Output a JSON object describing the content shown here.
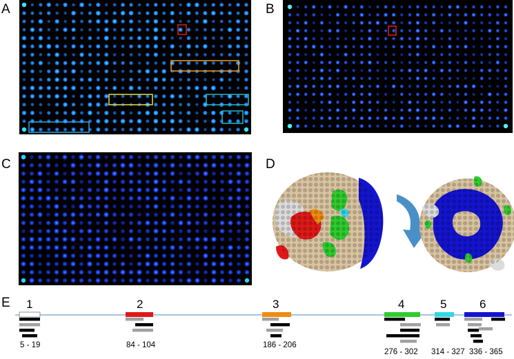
{
  "panels": {
    "A": {
      "label": "A"
    },
    "B": {
      "label": "B"
    },
    "C": {
      "label": "C"
    },
    "D": {
      "label": "D"
    },
    "E": {
      "label": "E"
    }
  },
  "arrays": {
    "A": {
      "rows": 16,
      "cols": 28,
      "dot_color": "#1f7fff",
      "glow_color": "#36e3ff"
    },
    "B": {
      "rows": 16,
      "cols": 28,
      "dot_color": "#1a3ed8",
      "glow_color": "#4ff0ff"
    },
    "C": {
      "rows": 16,
      "cols": 28,
      "dot_color": "#1d2fe8",
      "glow_color": "#2bd6ff"
    }
  },
  "highlight_colors": {
    "red": "#e0201c",
    "orange": "#f0a020",
    "yellow": "#e8e040",
    "blue": "#2fa8e0",
    "teal": "#29b7c6"
  },
  "structure_colors": {
    "tan": "#d9c3a0",
    "white": "#dcdcdc",
    "red": "#e01818",
    "orange": "#f08c10",
    "green": "#2ecc2e",
    "cyan": "#2fd8e8",
    "blue": "#1414d0",
    "arrow": "#4a90c8"
  },
  "epitope_map": {
    "regions": [
      {
        "num": "1",
        "range": "5 - 19",
        "color": "#ffffff"
      },
      {
        "num": "2",
        "range": "84 - 104",
        "color": "#e01818"
      },
      {
        "num": "3",
        "range": "186 - 206",
        "color": "#f08c10"
      },
      {
        "num": "4",
        "range": "276 - 302",
        "color": "#2ecc2e"
      },
      {
        "num": "5",
        "range": "314 - 327",
        "color": "#2fd8e8"
      },
      {
        "num": "6",
        "range": "336 - 365",
        "color": "#1414d0"
      }
    ],
    "line_color": "#6fa0c8",
    "peptide_dark": "#000000",
    "peptide_gray": "#a0a0a0"
  }
}
